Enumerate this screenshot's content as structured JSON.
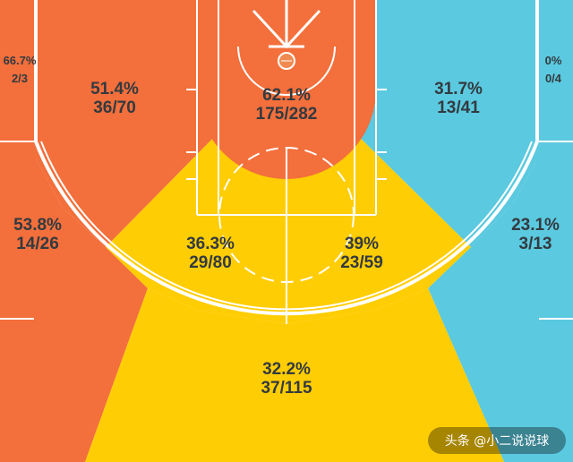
{
  "chart_data": {
    "type": "heatmap",
    "title": "",
    "zones": [
      {
        "id": "left-corner-three",
        "pct": "66.7%",
        "made_attempts": "2/3",
        "percentage": 66.7,
        "made": 2,
        "attempts": 3,
        "color": "#F36F3B"
      },
      {
        "id": "left-midrange-baseline",
        "pct": "51.4%",
        "made_attempts": "36/70",
        "percentage": 51.4,
        "made": 36,
        "attempts": 70,
        "color": "#F36F3B"
      },
      {
        "id": "restricted-area",
        "pct": "62.1%",
        "made_attempts": "175/282",
        "percentage": 62.1,
        "made": 175,
        "attempts": 282,
        "color": "#F36F3B"
      },
      {
        "id": "right-midrange-baseline",
        "pct": "31.7%",
        "made_attempts": "13/41",
        "percentage": 31.7,
        "made": 13,
        "attempts": 41,
        "color": "#5BC9DF"
      },
      {
        "id": "right-corner-three",
        "pct": "0%",
        "made_attempts": "0/4",
        "percentage": 0,
        "made": 0,
        "attempts": 4,
        "color": "#5BC9DF"
      },
      {
        "id": "left-wing-three",
        "pct": "53.8%",
        "made_attempts": "14/26",
        "percentage": 53.8,
        "made": 14,
        "attempts": 26,
        "color": "#F36F3B"
      },
      {
        "id": "left-elbow-midrange",
        "pct": "36.3%",
        "made_attempts": "29/80",
        "percentage": 36.3,
        "made": 29,
        "attempts": 80,
        "color": "#FFCD03"
      },
      {
        "id": "right-elbow-midrange",
        "pct": "39%",
        "made_attempts": "23/59",
        "percentage": 39,
        "made": 23,
        "attempts": 59,
        "color": "#FFCD03"
      },
      {
        "id": "right-wing-three",
        "pct": "23.1%",
        "made_attempts": "3/13",
        "percentage": 23.1,
        "made": 3,
        "attempts": 13,
        "color": "#5BC9DF"
      },
      {
        "id": "top-of-key-three",
        "pct": "32.2%",
        "made_attempts": "37/115",
        "percentage": 32.2,
        "made": 37,
        "attempts": 115,
        "color": "#FFCD03"
      }
    ],
    "legend": []
  },
  "colors": {
    "hot": "#F36F3B",
    "average": "#FFCD03",
    "cold": "#5BC9DF",
    "lines": "#ffffff",
    "text": "#333a40"
  },
  "watermark": {
    "text": "头条 @小二说说球"
  }
}
